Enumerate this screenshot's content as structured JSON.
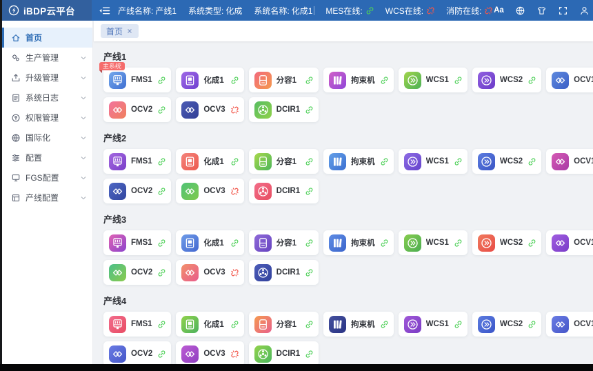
{
  "app": {
    "title": "iBDP云平台"
  },
  "colors": {
    "header_bg": "#2c69b4",
    "logo_bg": "#32609e",
    "accent": "#2d6cb5",
    "online": "#4ed058",
    "offline": "#f2564a",
    "content_bg": "#f0f2f5",
    "badge_bg": "#f56c6c"
  },
  "header": {
    "font_size_label": "Aa",
    "info": [
      {
        "key": "line-name",
        "label": "产线名称:",
        "value": "产线1"
      },
      {
        "key": "system-type",
        "label": "系统类型:",
        "value": "化成"
      },
      {
        "key": "system-name",
        "label": "系统名称:",
        "value": "化成1"
      }
    ],
    "statuses": [
      {
        "key": "mes",
        "label": "MES在线:",
        "online": true,
        "icon": "link-icon"
      },
      {
        "key": "wcs",
        "label": "WCS在线:",
        "online": false,
        "icon": "broken-link-icon"
      },
      {
        "key": "fire",
        "label": "消防在线:",
        "online": false,
        "icon": "broken-link-icon"
      }
    ],
    "action_icons": [
      "font-size-icon",
      "language-icon",
      "theme-icon",
      "fullscreen-icon",
      "user-icon"
    ]
  },
  "sidebar": {
    "items": [
      {
        "key": "home",
        "label": "首页",
        "icon": "home-icon",
        "active": true,
        "expandable": false
      },
      {
        "key": "production",
        "label": "生产管理",
        "icon": "production-icon",
        "active": false,
        "expandable": true
      },
      {
        "key": "upgrade",
        "label": "升级管理",
        "icon": "upgrade-icon",
        "active": false,
        "expandable": true
      },
      {
        "key": "syslog",
        "label": "系统日志",
        "icon": "log-icon",
        "active": false,
        "expandable": true
      },
      {
        "key": "permission",
        "label": "权限管理",
        "icon": "permission-icon",
        "active": false,
        "expandable": true
      },
      {
        "key": "i18n",
        "label": "国际化",
        "icon": "globe-icon",
        "active": false,
        "expandable": true
      },
      {
        "key": "config",
        "label": "配置",
        "icon": "config-icon",
        "active": false,
        "expandable": true
      },
      {
        "key": "fgs-config",
        "label": "FGS配置",
        "icon": "fgs-icon",
        "active": false,
        "expandable": true
      },
      {
        "key": "line-config",
        "label": "产线配置",
        "icon": "line-config-icon",
        "active": false,
        "expandable": true
      }
    ]
  },
  "tabs": [
    {
      "label": "首页",
      "closable": true
    }
  ],
  "sections": [
    {
      "title": "产线1",
      "cards": [
        {
          "key": "fms1",
          "label": "FMS1",
          "icon": "machine-icon",
          "from": "#74a8ec",
          "to": "#3f6fd1",
          "online": true,
          "badge": "主系统"
        },
        {
          "key": "huacheng1",
          "label": "化成1",
          "icon": "formation-icon",
          "from": "#a06ae6",
          "to": "#6f3fd0",
          "online": true
        },
        {
          "key": "fenrong1",
          "label": "分容1",
          "icon": "grading-icon",
          "from": "#f2697c",
          "to": "#f59a4d",
          "online": true
        },
        {
          "key": "jushuji",
          "label": "拘束机",
          "icon": "restraint-icon",
          "from": "#d160c8",
          "to": "#8f46d8",
          "online": true
        },
        {
          "key": "wcs1",
          "label": "WCS1",
          "icon": "wcs-icon",
          "from": "#a2d44c",
          "to": "#4ab156",
          "online": true
        },
        {
          "key": "wcs2",
          "label": "WCS2",
          "icon": "wcs-icon",
          "from": "#9160e0",
          "to": "#6a3ac8",
          "online": true
        },
        {
          "key": "ocv1",
          "label": "OCV1",
          "icon": "ocv-icon",
          "from": "#5f8ade",
          "to": "#3b5fc6",
          "online": true
        },
        {
          "key": "ocv2",
          "label": "OCV2",
          "icon": "ocv-icon",
          "from": "#f2739d",
          "to": "#f0805c",
          "online": true
        },
        {
          "key": "ocv3",
          "label": "OCV3",
          "icon": "ocv-icon",
          "from": "#4c5cb4",
          "to": "#323f96",
          "online": false
        },
        {
          "key": "dcir1",
          "label": "DCIR1",
          "icon": "dcir-icon",
          "from": "#57bd62",
          "to": "#8fd14a",
          "online": true
        }
      ]
    },
    {
      "title": "产线2",
      "cards": [
        {
          "key": "fms1",
          "label": "FMS1",
          "icon": "machine-icon",
          "from": "#a468e0",
          "to": "#7a3fc8",
          "online": true
        },
        {
          "key": "huacheng1",
          "label": "化成1",
          "icon": "formation-icon",
          "from": "#f4847c",
          "to": "#ec5a4e",
          "online": true
        },
        {
          "key": "fenrong1",
          "label": "分容1",
          "icon": "grading-icon",
          "from": "#a8d84c",
          "to": "#4db65a",
          "online": true
        },
        {
          "key": "jushuji",
          "label": "拘束机",
          "icon": "restraint-icon",
          "from": "#64a0e8",
          "to": "#3b6fd1",
          "online": true
        },
        {
          "key": "wcs1",
          "label": "WCS1",
          "icon": "wcs-icon",
          "from": "#8e6ce4",
          "to": "#6443cc",
          "online": true
        },
        {
          "key": "wcs2",
          "label": "WCS2",
          "icon": "wcs-icon",
          "from": "#5c7ce0",
          "to": "#3a55c4",
          "online": true
        },
        {
          "key": "ocv1",
          "label": "OCV1",
          "icon": "ocv-icon",
          "from": "#d659b4",
          "to": "#a83ba6",
          "online": true
        },
        {
          "key": "ocv2",
          "label": "OCV2",
          "icon": "ocv-icon",
          "from": "#4f68c4",
          "to": "#31459e",
          "online": true
        },
        {
          "key": "ocv3",
          "label": "OCV3",
          "icon": "ocv-icon",
          "from": "#4fc276",
          "to": "#7fca4c",
          "online": false
        },
        {
          "key": "dcir1",
          "label": "DCIR1",
          "icon": "dcir-icon",
          "from": "#f26d88",
          "to": "#e84e62",
          "online": true
        }
      ]
    },
    {
      "title": "产线3",
      "cards": [
        {
          "key": "fms1",
          "label": "FMS1",
          "icon": "machine-icon",
          "from": "#e063b4",
          "to": "#8c44cc",
          "online": true
        },
        {
          "key": "huacheng1",
          "label": "化成1",
          "icon": "formation-icon",
          "from": "#6f9ce8",
          "to": "#4468d0",
          "online": true
        },
        {
          "key": "fenrong1",
          "label": "分容1",
          "icon": "grading-icon",
          "from": "#8f6ad8",
          "to": "#6644c0",
          "online": true
        },
        {
          "key": "jushuji",
          "label": "拘束机",
          "icon": "restraint-icon",
          "from": "#5e8ce4",
          "to": "#3c66cc",
          "online": true
        },
        {
          "key": "wcs1",
          "label": "WCS1",
          "icon": "wcs-icon",
          "from": "#86cc4e",
          "to": "#4cae52",
          "online": true
        },
        {
          "key": "wcs2",
          "label": "WCS2",
          "icon": "wcs-icon",
          "from": "#f07a5e",
          "to": "#e84c46",
          "online": true
        },
        {
          "key": "ocv1",
          "label": "OCV1",
          "icon": "ocv-icon",
          "from": "#a05ee0",
          "to": "#7a3cc8",
          "online": true
        },
        {
          "key": "ocv2",
          "label": "OCV2",
          "icon": "ocv-icon",
          "from": "#4cc08a",
          "to": "#8aca4c",
          "online": true
        },
        {
          "key": "ocv3",
          "label": "OCV3",
          "icon": "ocv-icon",
          "from": "#f2906a",
          "to": "#e85c8c",
          "online": false
        },
        {
          "key": "dcir1",
          "label": "DCIR1",
          "icon": "dcir-icon",
          "from": "#4c5cb8",
          "to": "#31419c",
          "online": true
        }
      ]
    },
    {
      "title": "产线4",
      "cards": [
        {
          "key": "fms1",
          "label": "FMS1",
          "icon": "machine-icon",
          "from": "#f26d8c",
          "to": "#e84c64",
          "online": true
        },
        {
          "key": "huacheng1",
          "label": "化成1",
          "icon": "formation-icon",
          "from": "#92d24c",
          "to": "#4cb25e",
          "online": true
        },
        {
          "key": "fenrong1",
          "label": "分容1",
          "icon": "grading-icon",
          "from": "#f59a50",
          "to": "#e8608c",
          "online": true
        },
        {
          "key": "jushuji",
          "label": "拘束机",
          "icon": "restraint-icon",
          "from": "#44509e",
          "to": "#2a3484",
          "online": true
        },
        {
          "key": "wcs1",
          "label": "WCS1",
          "icon": "wcs-icon",
          "from": "#a058d8",
          "to": "#7a3cc4",
          "online": true
        },
        {
          "key": "wcs2",
          "label": "WCS2",
          "icon": "wcs-icon",
          "from": "#5c7ce0",
          "to": "#3a55c8",
          "online": true
        },
        {
          "key": "ocv1",
          "label": "OCV1",
          "icon": "ocv-icon",
          "from": "#6a7ce4",
          "to": "#4656c8",
          "online": true
        },
        {
          "key": "ocv2",
          "label": "OCV2",
          "icon": "ocv-icon",
          "from": "#6a7ce4",
          "to": "#4656c8",
          "online": true
        },
        {
          "key": "ocv3",
          "label": "OCV3",
          "icon": "ocv-icon",
          "from": "#bc5cd4",
          "to": "#8f3fc0",
          "online": false
        },
        {
          "key": "dcir1",
          "label": "DCIR1",
          "icon": "dcir-icon",
          "from": "#92d24c",
          "to": "#4cb85e",
          "online": true
        }
      ]
    }
  ]
}
